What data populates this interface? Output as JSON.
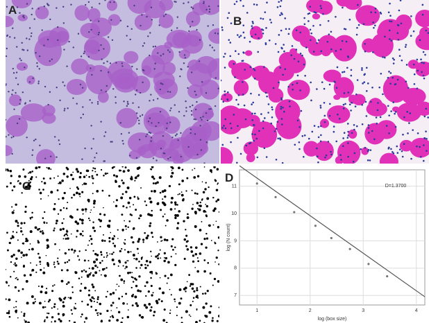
{
  "panels": [
    {
      "label": "A"
    },
    {
      "label": "B"
    },
    {
      "label": "C"
    },
    {
      "label": "D"
    }
  ],
  "chart_data": {
    "type": "scatter",
    "annotation": "D=1.3700",
    "x_label": "log (box size)",
    "y_label": "log (N count)",
    "x": [
      1.0,
      1.35,
      1.7,
      2.1,
      2.4,
      2.75,
      3.1,
      3.45
    ],
    "values": [
      11.1,
      10.6,
      10.05,
      9.55,
      9.1,
      8.7,
      8.15,
      7.7
    ],
    "color": "#777777",
    "fit": {
      "x": [
        0.67,
        4.16
      ],
      "values": [
        11.75,
        6.95
      ],
      "color": "#555555"
    },
    "xlim": [
      0.67,
      4.16
    ],
    "ylim": [
      6.65,
      11.6
    ],
    "xticks": [
      1,
      2,
      3,
      4
    ],
    "yticks": [
      7,
      8,
      9,
      10,
      11
    ],
    "grid": true
  }
}
